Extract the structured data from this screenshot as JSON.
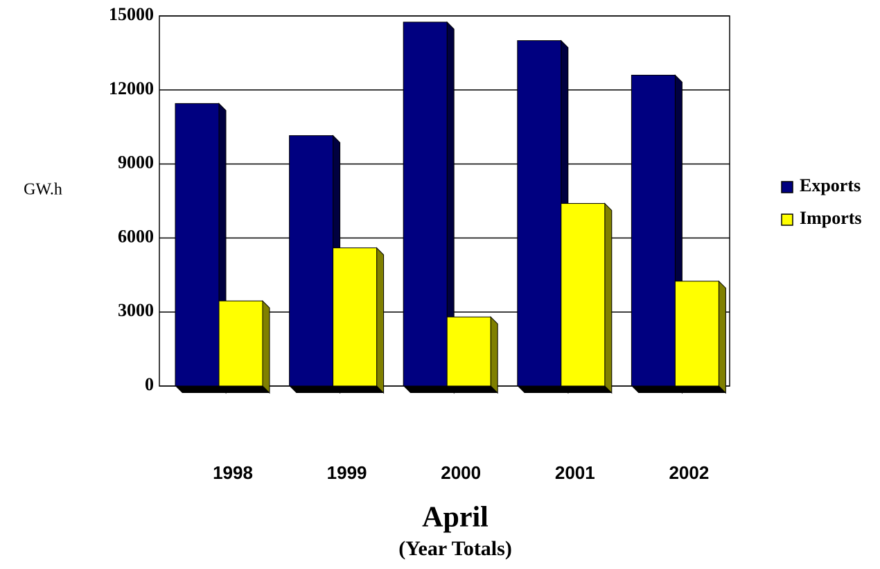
{
  "chart_data": {
    "type": "bar",
    "title": "April",
    "subtitle": "(Year Totals)",
    "y_label": "GW.h",
    "categories": [
      "1998",
      "1999",
      "2000",
      "2001",
      "2002"
    ],
    "series": [
      {
        "name": "Exports",
        "color": "#000080",
        "values": [
          11450,
          10150,
          14750,
          14000,
          12600
        ]
      },
      {
        "name": "Imports",
        "color": "#ffff00",
        "values": [
          3450,
          5600,
          2800,
          7400,
          4250
        ]
      }
    ],
    "ylim": [
      0,
      15000
    ],
    "yticks": [
      0,
      3000,
      6000,
      9000,
      12000,
      15000
    ],
    "grid": true
  }
}
